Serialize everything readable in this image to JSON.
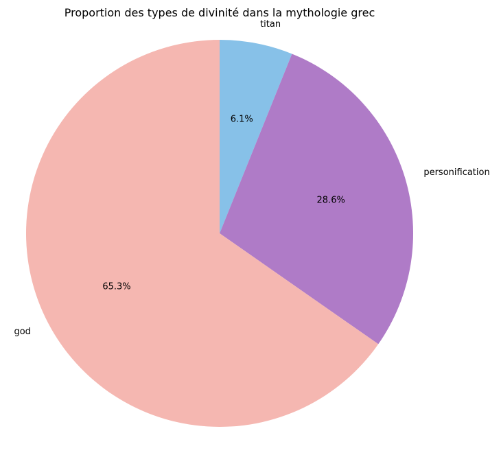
{
  "chart_data": {
    "type": "pie",
    "title": "Proportion des types de divinité dans la mythologie grec",
    "start_angle_deg": 90,
    "direction": "clockwise",
    "slices": [
      {
        "label": "titan",
        "value": 6.1,
        "pct_label": "6.1%",
        "color": "#87c1e8"
      },
      {
        "label": "personification",
        "value": 28.6,
        "pct_label": "28.6%",
        "color": "#af7bc7"
      },
      {
        "label": "god",
        "value": 65.3,
        "pct_label": "65.3%",
        "color": "#f5b7b1"
      }
    ]
  }
}
